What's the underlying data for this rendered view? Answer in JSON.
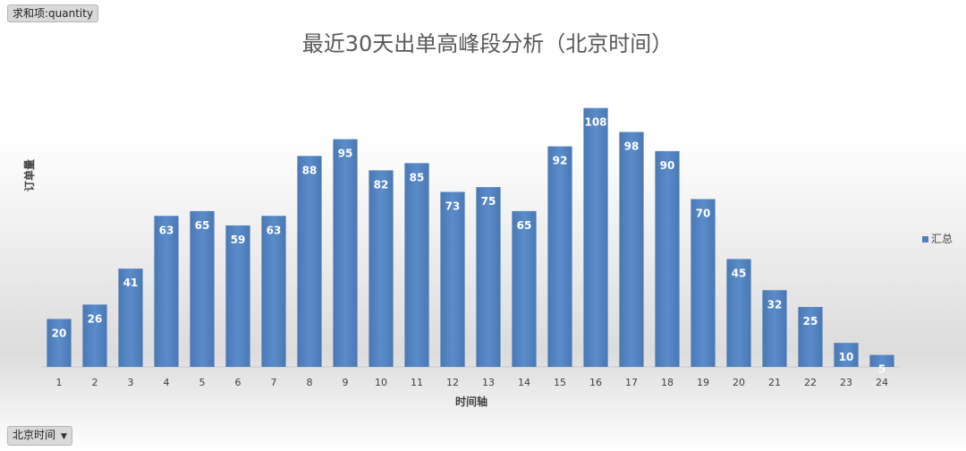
{
  "field_buttons": {
    "sum_label": "求和项:quantity",
    "axis_field_label": "北京时间",
    "dropdown_glyph": "▼"
  },
  "chart_data": {
    "type": "bar",
    "title": "最近30天出单高峰段分析（北京时间）",
    "xlabel": "时间轴",
    "ylabel": "订单量",
    "categories": [
      "1",
      "2",
      "3",
      "4",
      "5",
      "6",
      "7",
      "8",
      "9",
      "10",
      "11",
      "12",
      "13",
      "14",
      "15",
      "16",
      "17",
      "18",
      "19",
      "20",
      "21",
      "22",
      "23",
      "24"
    ],
    "series": [
      {
        "name": "汇总",
        "values": [
          20,
          26,
          41,
          63,
          65,
          59,
          63,
          88,
          95,
          82,
          85,
          73,
          75,
          65,
          92,
          108,
          98,
          90,
          70,
          45,
          32,
          25,
          10,
          5
        ],
        "color": "#4f81bd"
      }
    ],
    "ylim": [
      0,
      112
    ],
    "grid": false,
    "legend": "right",
    "data_labels": true
  }
}
